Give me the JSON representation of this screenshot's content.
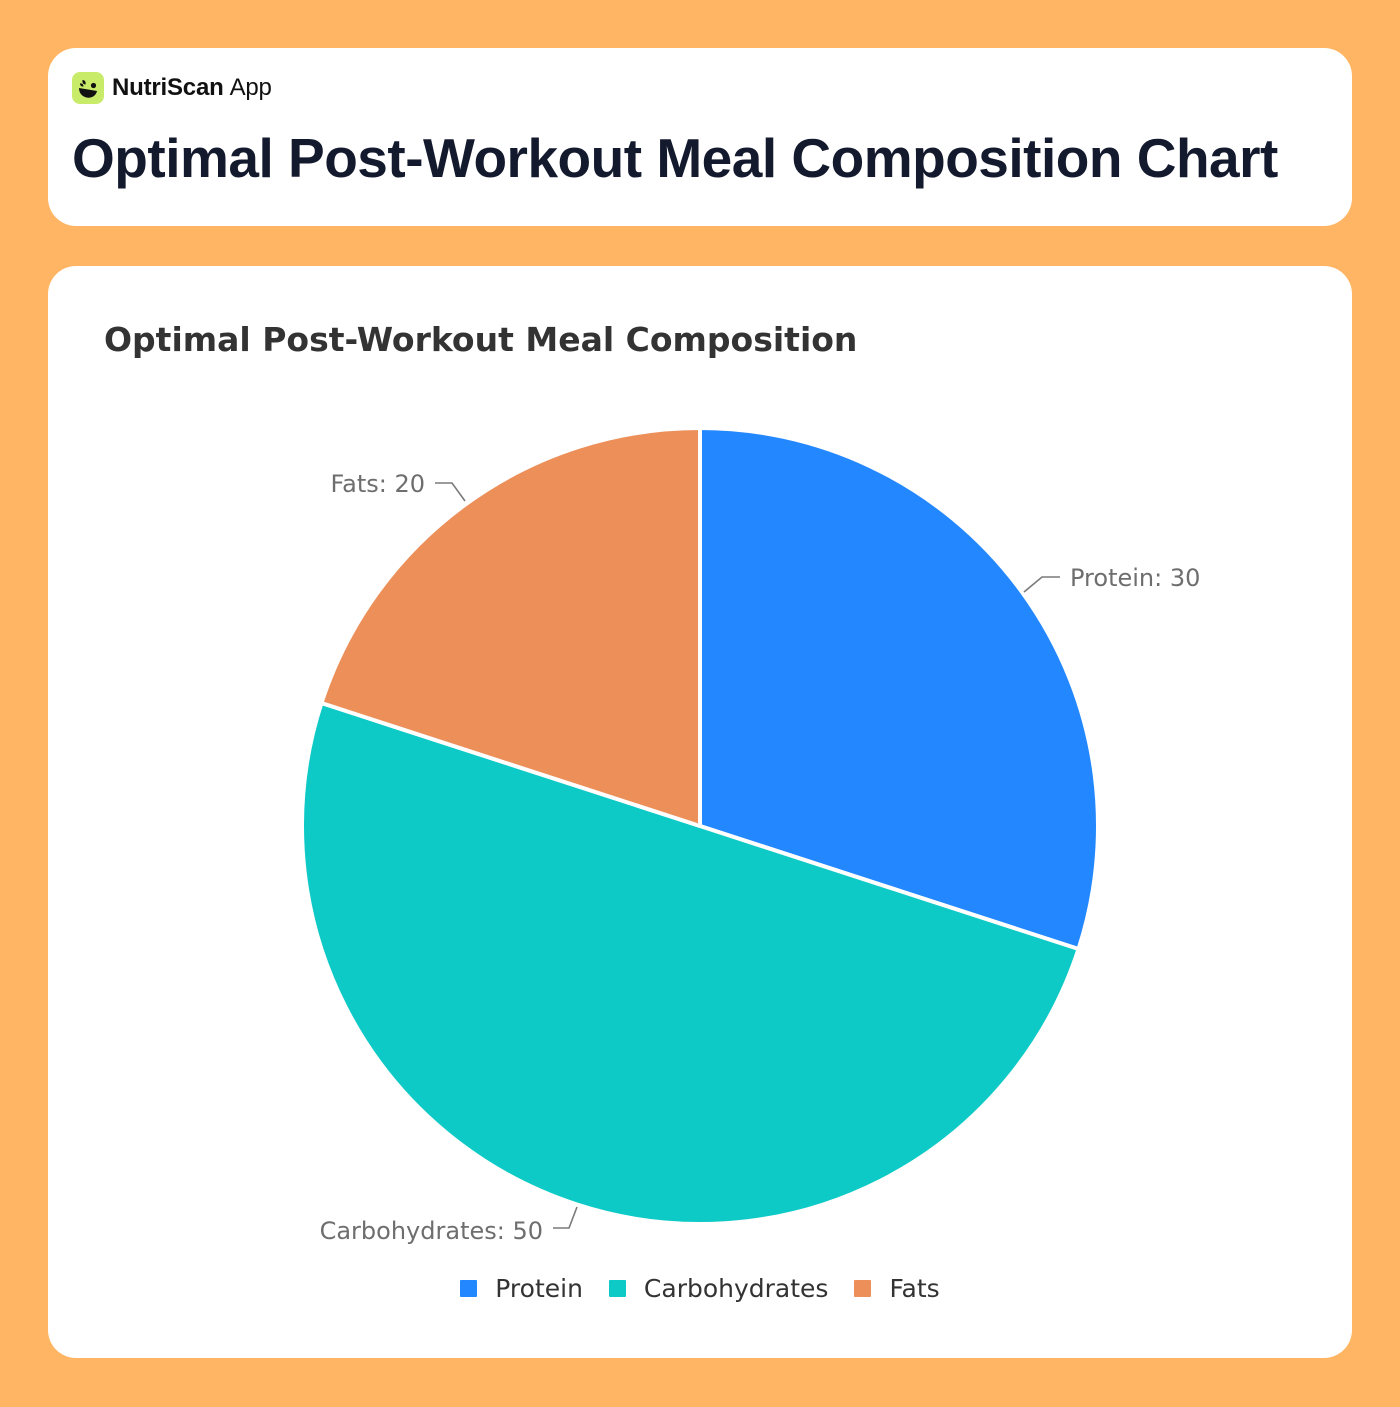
{
  "header": {
    "brand_name": "NutriScan",
    "brand_suffix": "App",
    "logo_icon": "bowl-leaf-icon",
    "logo_color": "#C8EB6A",
    "page_title": "Optimal Post-Workout Meal Composition Chart"
  },
  "theme": {
    "background": "#FFB563",
    "card": "#FFFFFF",
    "title_color": "#141A2E"
  },
  "chart": {
    "title": "Optimal Post-Workout Meal Composition",
    "labels": {
      "protein": "Protein: 30",
      "carbohydrates": "Carbohydrates: 50",
      "fats": "Fats: 20"
    },
    "legend": [
      {
        "name": "Protein",
        "color": "#2388FF"
      },
      {
        "name": "Carbohydrates",
        "color": "#0DCAC7"
      },
      {
        "name": "Fats",
        "color": "#EC8F59"
      }
    ]
  },
  "chart_data": {
    "type": "pie",
    "title": "Optimal Post-Workout Meal Composition",
    "categories": [
      "Protein",
      "Carbohydrates",
      "Fats"
    ],
    "values": [
      30,
      50,
      20
    ],
    "colors": [
      "#2388FF",
      "#0DCAC7",
      "#EC8F59"
    ],
    "data_labels": [
      "Protein: 30",
      "Carbohydrates: 50",
      "Fats: 20"
    ],
    "start_angle": "top (12 o'clock), clockwise",
    "legend_position": "bottom",
    "legend_entries": [
      "Protein",
      "Carbohydrates",
      "Fats"
    ]
  }
}
